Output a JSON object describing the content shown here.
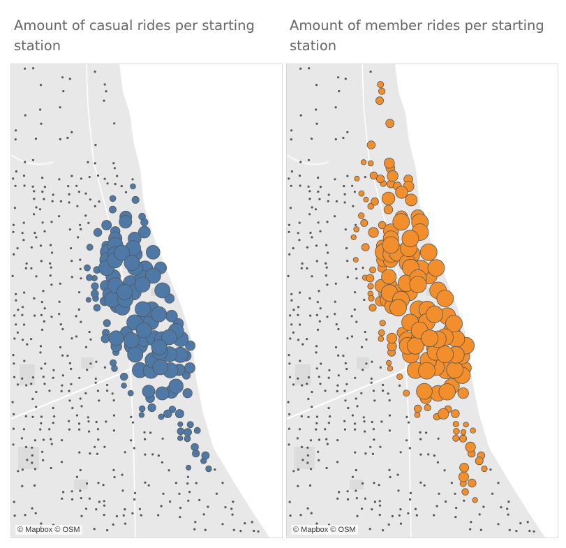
{
  "colors": {
    "land": "#e8e8e8",
    "water": "#ffffff",
    "road": "#ffffff",
    "park": "#dcdcdc",
    "casual": "#4e79a7",
    "member": "#f28e2b",
    "marker_outline": "#555555",
    "small_dot": "#555555"
  },
  "maps": [
    {
      "title": "Amount of casual rides per starting station",
      "attribution": "© Mapbox © OSM",
      "marker_color_key": "casual",
      "hotspots": [
        {
          "lat": 0.62,
          "lon": 0.56,
          "spread": 0.08,
          "weight": 1.0
        },
        {
          "lat": 0.53,
          "lon": 0.48,
          "spread": 0.1,
          "weight": 0.8
        },
        {
          "lat": 0.4,
          "lon": 0.42,
          "spread": 0.09,
          "weight": 0.7
        },
        {
          "lat": 0.8,
          "lon": 0.7,
          "spread": 0.06,
          "weight": 0.45
        }
      ],
      "max_radius": 11
    },
    {
      "title": "Amount of member rides per starting station",
      "attribution": "© Mapbox © OSM",
      "marker_color_key": "member",
      "hotspots": [
        {
          "lat": 0.5,
          "lon": 0.55,
          "spread": 0.1,
          "weight": 1.0
        },
        {
          "lat": 0.62,
          "lon": 0.58,
          "spread": 0.09,
          "weight": 0.95
        },
        {
          "lat": 0.38,
          "lon": 0.45,
          "spread": 0.12,
          "weight": 0.8
        },
        {
          "lat": 0.85,
          "lon": 0.68,
          "spread": 0.05,
          "weight": 0.55
        },
        {
          "lat": 0.12,
          "lon": 0.35,
          "spread": 0.08,
          "weight": 0.4
        }
      ],
      "max_radius": 12
    }
  ]
}
